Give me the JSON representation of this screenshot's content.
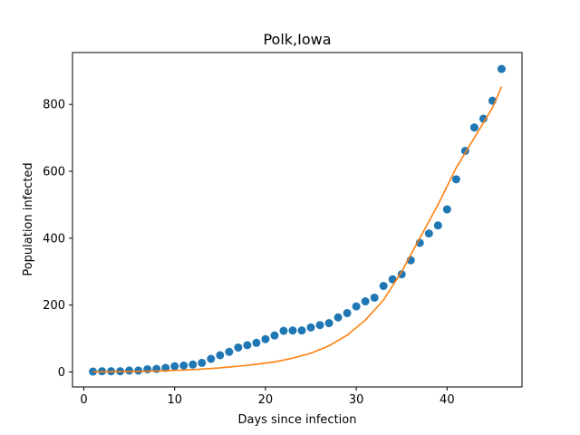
{
  "chart_data": {
    "type": "scatter",
    "title": "Polk,Iowa",
    "xlabel": "Days since infection",
    "ylabel": "Population infected",
    "xlim": [
      -1.25,
      48.25
    ],
    "ylim": [
      -45,
      955
    ],
    "xticks": [
      0,
      10,
      20,
      30,
      40
    ],
    "yticks": [
      0,
      200,
      400,
      600,
      800
    ],
    "grid": false,
    "series": [
      {
        "kind": "scatter",
        "color": "#1f77b4",
        "x": [
          1,
          2,
          3,
          4,
          5,
          6,
          7,
          8,
          9,
          10,
          11,
          12,
          13,
          14,
          15,
          16,
          17,
          18,
          19,
          20,
          21,
          22,
          23,
          24,
          25,
          26,
          27,
          28,
          29,
          30,
          31,
          32,
          33,
          34,
          35,
          36,
          37,
          38,
          39,
          40,
          41,
          42,
          43,
          44,
          45,
          46
        ],
        "y": [
          1,
          2,
          2,
          2,
          4,
          4,
          8,
          9,
          12,
          17,
          19,
          22,
          27,
          39,
          50,
          60,
          73,
          80,
          87,
          98,
          109,
          123,
          124,
          124,
          133,
          140,
          146,
          163,
          176,
          196,
          211,
          222,
          257,
          277,
          292,
          334,
          386,
          414,
          438,
          486,
          576,
          661,
          731,
          757,
          811,
          906
        ]
      },
      {
        "kind": "line",
        "color": "#ff7f0e",
        "x": [
          1,
          3,
          5,
          7,
          9,
          11,
          13,
          15,
          17,
          19,
          21,
          23,
          25,
          27,
          29,
          31,
          33,
          35,
          37,
          39,
          41,
          43,
          45,
          46
        ],
        "y": [
          0.3,
          0.6,
          1.2,
          2,
          3.5,
          5.5,
          8.5,
          12,
          17,
          23,
          30,
          41,
          56,
          78,
          110,
          155,
          215,
          300,
          400,
          500,
          610,
          700,
          790,
          853
        ]
      }
    ]
  }
}
